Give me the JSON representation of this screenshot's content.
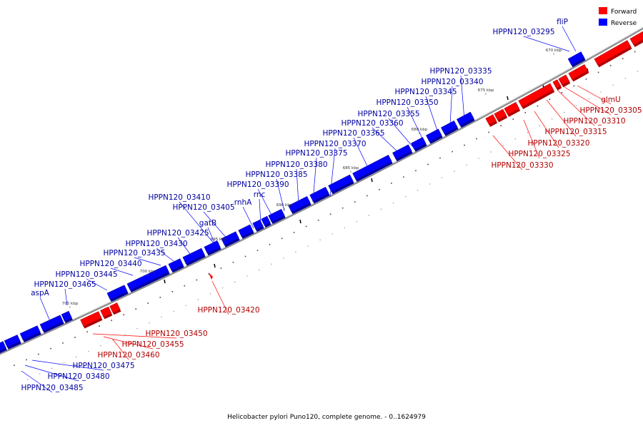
{
  "caption": "Helicobacter pylori Puno120, complete genome. - 0..1624979",
  "legend": [
    {
      "label": "Forward",
      "color": "#ff0000"
    },
    {
      "label": "Reverse",
      "color": "#0000ff"
    }
  ],
  "colors": {
    "forward": "#ff0000",
    "forward_dark": "#b00000",
    "reverse": "#0000ff",
    "reverse_dark": "#0000a0",
    "backbone": "#888888"
  },
  "ticks": [
    {
      "label": "670 kbp"
    },
    {
      "label": "675 kbp"
    },
    {
      "label": "680 kbp"
    },
    {
      "label": "685 kbp"
    },
    {
      "label": "690 kbp"
    },
    {
      "label": "695 kbp"
    },
    {
      "label": "700 kbp"
    },
    {
      "label": "705 kbp"
    }
  ],
  "genes": [
    {
      "label": "fliP",
      "strand": "reverse"
    },
    {
      "label": "HPPN120_03295",
      "strand": "reverse"
    },
    {
      "label": "glmU",
      "strand": "forward"
    },
    {
      "label": "HPPN120_03305",
      "strand": "forward"
    },
    {
      "label": "HPPN120_03310",
      "strand": "forward"
    },
    {
      "label": "HPPN120_03315",
      "strand": "forward"
    },
    {
      "label": "HPPN120_03320",
      "strand": "forward"
    },
    {
      "label": "HPPN120_03325",
      "strand": "forward"
    },
    {
      "label": "HPPN120_03330",
      "strand": "forward"
    },
    {
      "label": "HPPN120_03335",
      "strand": "reverse"
    },
    {
      "label": "HPPN120_03340",
      "strand": "reverse"
    },
    {
      "label": "HPPN120_03345",
      "strand": "reverse"
    },
    {
      "label": "HPPN120_03350",
      "strand": "reverse"
    },
    {
      "label": "HPPN120_03355",
      "strand": "reverse"
    },
    {
      "label": "HPPN120_03360",
      "strand": "reverse"
    },
    {
      "label": "HPPN120_03365",
      "strand": "reverse"
    },
    {
      "label": "HPPN120_03370",
      "strand": "reverse"
    },
    {
      "label": "HPPN120_03375",
      "strand": "reverse"
    },
    {
      "label": "HPPN120_03380",
      "strand": "reverse"
    },
    {
      "label": "HPPN120_03385",
      "strand": "reverse"
    },
    {
      "label": "HPPN120_03390",
      "strand": "reverse"
    },
    {
      "label": "rnc",
      "strand": "reverse"
    },
    {
      "label": "rnhA",
      "strand": "reverse"
    },
    {
      "label": "HPPN120_03405",
      "strand": "reverse"
    },
    {
      "label": "HPPN120_03410",
      "strand": "reverse"
    },
    {
      "label": "gatB",
      "strand": "reverse"
    },
    {
      "label": "HPPN120_03420",
      "strand": "forward"
    },
    {
      "label": "HPPN120_03425",
      "strand": "reverse"
    },
    {
      "label": "HPPN120_03430",
      "strand": "reverse"
    },
    {
      "label": "HPPN120_03435",
      "strand": "reverse"
    },
    {
      "label": "HPPN120_03440",
      "strand": "reverse"
    },
    {
      "label": "HPPN120_03445",
      "strand": "reverse"
    },
    {
      "label": "HPPN120_03465",
      "strand": "reverse"
    },
    {
      "label": "aspA",
      "strand": "reverse"
    },
    {
      "label": "HPPN120_03450",
      "strand": "forward"
    },
    {
      "label": "HPPN120_03455",
      "strand": "forward"
    },
    {
      "label": "HPPN120_03460",
      "strand": "forward"
    },
    {
      "label": "HPPN120_03475",
      "strand": "reverse"
    },
    {
      "label": "HPPN120_03480",
      "strand": "reverse"
    },
    {
      "label": "HPPN120_03485",
      "strand": "reverse"
    }
  ]
}
